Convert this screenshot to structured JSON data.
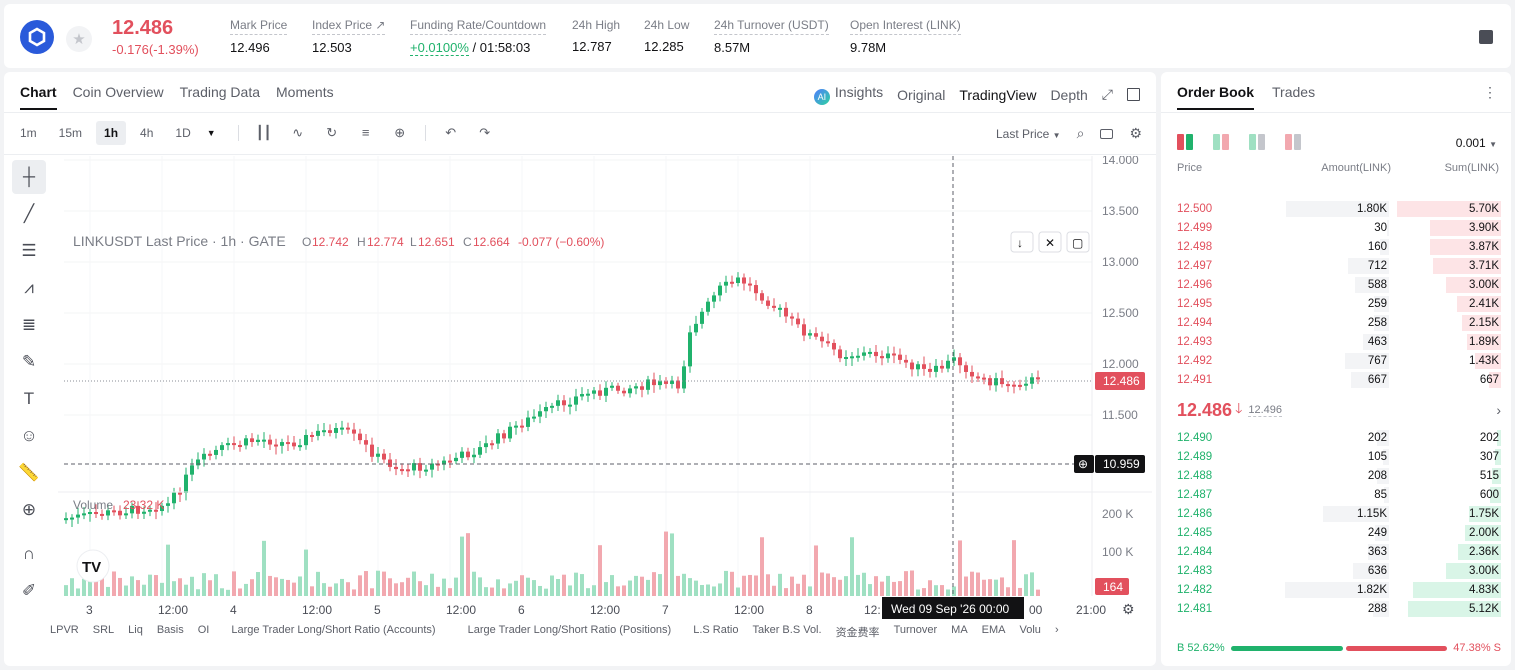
{
  "header": {
    "last_price": "12.486",
    "price_change": "-0.176(-1.39%)",
    "stats": [
      {
        "label": "Mark Price",
        "value": "12.496"
      },
      {
        "label": "Index Price ↗",
        "value": "12.503"
      },
      {
        "label": "Funding Rate/Countdown",
        "value_green": "+0.0100%",
        "value": " / 01:58:03"
      },
      {
        "label": "24h High",
        "value": "12.787"
      },
      {
        "label": "24h Low",
        "value": "12.285"
      },
      {
        "label": "24h Turnover (USDT)",
        "value": "8.57M"
      },
      {
        "label": "Open Interest (LINK)",
        "value": "9.78M"
      }
    ]
  },
  "chart_tabs": [
    "Chart",
    "Coin Overview",
    "Trading Data",
    "Moments"
  ],
  "view_tabs": {
    "insights": "Insights",
    "original": "Original",
    "tradingview": "TradingView",
    "depth": "Depth"
  },
  "timeframes": [
    "1m",
    "15m",
    "1h",
    "4h",
    "1D"
  ],
  "price_type": "Last Price",
  "legend": {
    "symbol": "LINKUSDT Last Price · 1h · GATE",
    "o": "O",
    "o_val": "12.742",
    "h": "H",
    "h_val": "12.774",
    "l": "L",
    "l_val": "12.651",
    "c": "C",
    "c_val": "12.664",
    "chg": "-0.077 (−0.60%)"
  },
  "price_labels": [
    "14.000",
    "13.500",
    "13.000",
    "12.500",
    "12.000",
    "11.500"
  ],
  "current_price_tag": "12.486",
  "crosshair_price_tag": "10.959",
  "volume": {
    "label": "Volume",
    "value": "23.32 K",
    "axis": [
      "200 K",
      "100 K"
    ],
    "tag": "164"
  },
  "time_labels": [
    "3",
    "12:00",
    "4",
    "12:00",
    "5",
    "12:00",
    "6",
    "12:00",
    "7",
    "12:00",
    "8",
    "12:",
    "00",
    "21:00"
  ],
  "crosshair_time": "Wed 09 Sep '26   00:00",
  "indicator_tabs": [
    "LPVR",
    "SRL",
    "Liq",
    "Basis",
    "OI",
    "Large Trader Long/Short Ratio (Accounts)",
    "Large Trader Long/Short Ratio (Positions)",
    "L.S Ratio",
    "Taker B.S Vol.",
    "资金费率",
    "Turnover",
    "MA",
    "EMA",
    "Volu"
  ],
  "orderbook": {
    "tabs": [
      "Order Book",
      "Trades"
    ],
    "precision": "0.001",
    "headers": {
      "price": "Price",
      "amount": "Amount(LINK)",
      "sum": "Sum(LINK)"
    },
    "asks": [
      {
        "price": "12.500",
        "amount": "1.80K",
        "sum": "5.70K"
      },
      {
        "price": "12.499",
        "amount": "30",
        "sum": "3.90K"
      },
      {
        "price": "12.498",
        "amount": "160",
        "sum": "3.87K"
      },
      {
        "price": "12.497",
        "amount": "712",
        "sum": "3.71K"
      },
      {
        "price": "12.496",
        "amount": "588",
        "sum": "3.00K"
      },
      {
        "price": "12.495",
        "amount": "259",
        "sum": "2.41K"
      },
      {
        "price": "12.494",
        "amount": "258",
        "sum": "2.15K"
      },
      {
        "price": "12.493",
        "amount": "463",
        "sum": "1.89K"
      },
      {
        "price": "12.492",
        "amount": "767",
        "sum": "1.43K"
      },
      {
        "price": "12.491",
        "amount": "667",
        "sum": "667"
      }
    ],
    "mid_price": "12.486",
    "mid_mark": "12.496",
    "bids": [
      {
        "price": "12.490",
        "amount": "202",
        "sum": "202"
      },
      {
        "price": "12.489",
        "amount": "105",
        "sum": "307"
      },
      {
        "price": "12.488",
        "amount": "208",
        "sum": "515"
      },
      {
        "price": "12.487",
        "amount": "85",
        "sum": "600"
      },
      {
        "price": "12.486",
        "amount": "1.15K",
        "sum": "1.75K"
      },
      {
        "price": "12.485",
        "amount": "249",
        "sum": "2.00K"
      },
      {
        "price": "12.484",
        "amount": "363",
        "sum": "2.36K"
      },
      {
        "price": "12.483",
        "amount": "636",
        "sum": "3.00K"
      },
      {
        "price": "12.482",
        "amount": "1.82K",
        "sum": "4.83K"
      },
      {
        "price": "12.481",
        "amount": "288",
        "sum": "5.12K"
      }
    ],
    "buy_ratio_label": "B 52.62%",
    "sell_ratio_label": "47.38% S",
    "buy_ratio": 0.5262
  },
  "colors": {
    "up": "#20b26c",
    "down": "#e2505d",
    "accent": "#121214"
  }
}
